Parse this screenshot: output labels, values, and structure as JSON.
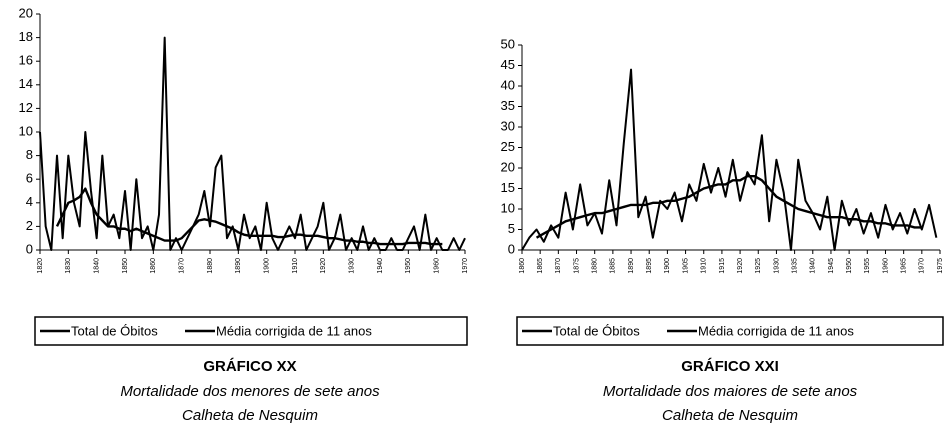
{
  "chart_data": [
    {
      "type": "line",
      "title": "GRÁFICO XX",
      "subtitle": [
        "Mortalidade dos menores de sete anos",
        "Calheta de Nesquim"
      ],
      "x": [
        1820,
        1822,
        1824,
        1826,
        1828,
        1830,
        1832,
        1834,
        1836,
        1838,
        1840,
        1842,
        1844,
        1846,
        1848,
        1850,
        1852,
        1854,
        1856,
        1858,
        1860,
        1862,
        1864,
        1866,
        1868,
        1870,
        1872,
        1874,
        1876,
        1878,
        1880,
        1882,
        1884,
        1886,
        1888,
        1890,
        1892,
        1894,
        1896,
        1898,
        1900,
        1902,
        1904,
        1906,
        1908,
        1910,
        1912,
        1914,
        1916,
        1918,
        1920,
        1922,
        1924,
        1926,
        1928,
        1930,
        1932,
        1934,
        1936,
        1938,
        1940,
        1942,
        1944,
        1946,
        1948,
        1950,
        1952,
        1954,
        1956,
        1958,
        1960,
        1962,
        1964,
        1966,
        1968,
        1970
      ],
      "series": [
        {
          "name": "Total de Óbitos",
          "color": "#000000",
          "values": [
            10,
            2,
            0,
            8,
            1,
            8,
            4,
            2,
            10,
            5,
            1,
            8,
            2,
            3,
            1,
            5,
            0,
            6,
            1,
            2,
            0,
            3,
            18,
            0,
            1,
            0,
            1,
            2,
            3,
            5,
            2,
            7,
            8,
            1,
            2,
            0,
            3,
            1,
            2,
            0,
            4,
            1,
            0,
            1,
            2,
            1,
            3,
            0,
            1,
            2,
            4,
            0,
            1,
            3,
            0,
            1,
            0,
            2,
            0,
            1,
            0,
            0,
            1,
            0,
            0,
            1,
            2,
            0,
            3,
            0,
            1,
            0,
            0,
            1,
            0,
            1
          ]
        },
        {
          "name": "Média corrigida de 11 anos",
          "color": "#000000",
          "values": [
            null,
            null,
            null,
            2,
            3,
            4,
            4.2,
            4.5,
            5.2,
            4,
            3,
            2.5,
            2,
            2,
            1.8,
            1.8,
            1.6,
            1.8,
            1.6,
            1.4,
            1.2,
            1,
            0.8,
            0.8,
            0.8,
            1,
            1.5,
            2,
            2.5,
            2.6,
            2.5,
            2.4,
            2.2,
            2,
            1.8,
            1.5,
            1.3,
            1.2,
            1.2,
            1.2,
            1.2,
            1.2,
            1.1,
            1.1,
            1.2,
            1.3,
            1.3,
            1.2,
            1.2,
            1.2,
            1.1,
            1,
            1,
            0.9,
            0.8,
            0.8,
            0.7,
            0.7,
            0.6,
            0.6,
            0.5,
            0.5,
            0.5,
            0.5,
            0.5,
            0.6,
            0.6,
            0.6,
            0.6,
            0.5,
            0.5,
            0.5,
            null,
            null,
            null,
            null
          ]
        }
      ],
      "xlim": [
        1820,
        1970
      ],
      "xticks": [
        1820,
        1830,
        1840,
        1850,
        1860,
        1870,
        1880,
        1890,
        1900,
        1910,
        1920,
        1930,
        1940,
        1950,
        1960,
        1970
      ],
      "ylim": [
        0,
        20
      ],
      "yticks": [
        0,
        2,
        4,
        6,
        8,
        10,
        12,
        14,
        16,
        18,
        20
      ],
      "grid": false
    },
    {
      "type": "line",
      "title": "GRÁFICO XXI",
      "subtitle": [
        "Mortalidade dos maiores de sete anos",
        "Calheta de Nesquim"
      ],
      "x": [
        1860,
        1862,
        1864,
        1866,
        1868,
        1870,
        1872,
        1874,
        1876,
        1878,
        1880,
        1882,
        1884,
        1886,
        1888,
        1890,
        1892,
        1894,
        1896,
        1898,
        1900,
        1902,
        1904,
        1906,
        1908,
        1910,
        1912,
        1914,
        1916,
        1918,
        1920,
        1922,
        1924,
        1926,
        1928,
        1930,
        1932,
        1934,
        1936,
        1938,
        1940,
        1942,
        1944,
        1946,
        1948,
        1950,
        1952,
        1954,
        1956,
        1958,
        1960,
        1962,
        1964,
        1966,
        1968,
        1970,
        1972,
        1974
      ],
      "series": [
        {
          "name": "Total de Óbitos",
          "color": "#000000",
          "values": [
            0,
            3,
            5,
            2,
            6,
            3,
            14,
            5,
            16,
            6,
            9,
            4,
            17,
            6,
            26,
            44,
            8,
            13,
            3,
            12,
            10,
            14,
            7,
            16,
            12,
            21,
            14,
            20,
            13,
            22,
            12,
            19,
            16,
            28,
            7,
            22,
            14,
            0,
            22,
            12,
            9,
            5,
            13,
            0,
            12,
            6,
            10,
            4,
            9,
            3,
            11,
            5,
            9,
            4,
            10,
            5,
            11,
            3
          ]
        },
        {
          "name": "Média corrigida de 11 anos",
          "color": "#000000",
          "values": [
            null,
            null,
            3,
            4,
            5,
            6,
            7,
            7.5,
            8,
            8.5,
            9,
            9,
            9.5,
            10,
            10.5,
            11,
            11,
            11,
            11.5,
            11.5,
            12,
            12,
            12.5,
            13,
            14,
            15,
            15.5,
            16,
            16,
            17,
            17,
            18,
            18,
            17,
            15,
            13,
            12,
            11,
            10,
            9.5,
            9,
            8.5,
            8,
            8,
            8,
            7.5,
            7.5,
            7,
            7,
            6.5,
            6.5,
            6,
            6,
            6,
            5.5,
            5.5,
            null,
            null
          ]
        }
      ],
      "xlim": [
        1860,
        1975
      ],
      "xticks": [
        1860,
        1865,
        1870,
        1875,
        1880,
        1885,
        1890,
        1895,
        1900,
        1905,
        1910,
        1915,
        1920,
        1925,
        1930,
        1935,
        1940,
        1945,
        1950,
        1955,
        1960,
        1965,
        1970,
        1975
      ],
      "ylim": [
        0,
        50
      ],
      "yticks": [
        0,
        5,
        10,
        15,
        20,
        25,
        30,
        35,
        40,
        45,
        50
      ],
      "grid": false
    }
  ]
}
